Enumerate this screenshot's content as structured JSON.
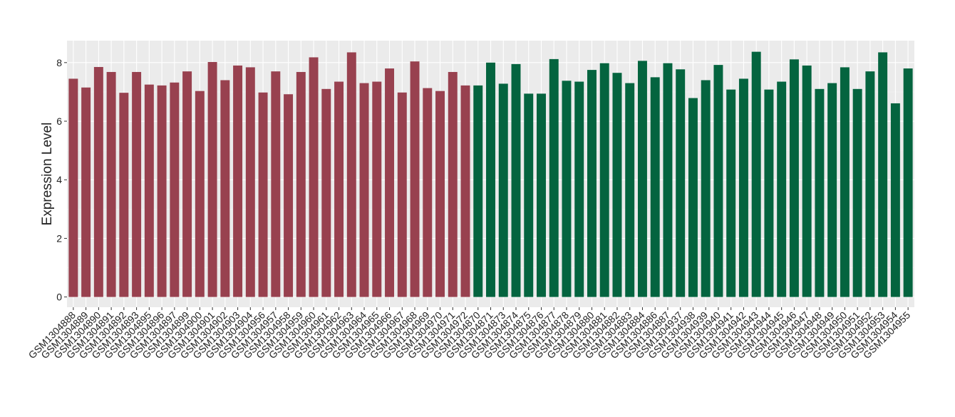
{
  "chart_data": {
    "type": "bar",
    "title": "",
    "xlabel": "",
    "ylabel": "Expression Level",
    "ylim": [
      -0.35,
      8.75
    ],
    "yticks": [
      0,
      2,
      4,
      6,
      8
    ],
    "grid": true,
    "legend": "none",
    "categories": [
      "GSM1304888",
      "GSM1304889",
      "GSM1304890",
      "GSM1304891",
      "GSM1304892",
      "GSM1304893",
      "GSM1304895",
      "GSM1304896",
      "GSM1304897",
      "GSM1304899",
      "GSM1304900",
      "GSM1304901",
      "GSM1304902",
      "GSM1304903",
      "GSM1304904",
      "GSM1304956",
      "GSM1304957",
      "GSM1304958",
      "GSM1304959",
      "GSM1304960",
      "GSM1304961",
      "GSM1304962",
      "GSM1304963",
      "GSM1304964",
      "GSM1304965",
      "GSM1304966",
      "GSM1304967",
      "GSM1304968",
      "GSM1304969",
      "GSM1304970",
      "GSM1304971",
      "GSM1304972",
      "GSM1304870",
      "GSM1304871",
      "GSM1304873",
      "GSM1304874",
      "GSM1304875",
      "GSM1304876",
      "GSM1304877",
      "GSM1304878",
      "GSM1304879",
      "GSM1304880",
      "GSM1304881",
      "GSM1304882",
      "GSM1304883",
      "GSM1304884",
      "GSM1304886",
      "GSM1304887",
      "GSM1304937",
      "GSM1304938",
      "GSM1304939",
      "GSM1304940",
      "GSM1304941",
      "GSM1304942",
      "GSM1304943",
      "GSM1304944",
      "GSM1304945",
      "GSM1304946",
      "GSM1304947",
      "GSM1304948",
      "GSM1304949",
      "GSM1304950",
      "GSM1304951",
      "GSM1304952",
      "GSM1304953",
      "GSM1304954",
      "GSM1304955"
    ],
    "values": [
      7.45,
      7.15,
      7.85,
      7.68,
      6.97,
      7.68,
      7.25,
      7.22,
      7.32,
      7.7,
      7.03,
      8.02,
      7.4,
      7.9,
      7.84,
      6.98,
      7.7,
      6.92,
      7.68,
      8.18,
      7.1,
      7.35,
      8.35,
      7.3,
      7.35,
      7.8,
      6.98,
      8.04,
      7.13,
      7.03,
      7.68,
      7.22,
      7.22,
      8.0,
      7.28,
      7.95,
      6.94,
      6.94,
      8.12,
      7.38,
      7.35,
      7.75,
      7.98,
      7.65,
      7.3,
      8.06,
      7.5,
      7.98,
      7.77,
      6.79,
      7.4,
      7.92,
      7.08,
      7.45,
      8.37,
      7.08,
      7.35,
      8.11,
      7.9,
      7.1,
      7.3,
      7.84,
      7.1,
      7.7,
      8.35,
      6.61,
      7.8
    ],
    "group_sizes": [
      32,
      35
    ],
    "colors": {
      "group_1": "#98414F",
      "group_2": "#04643F",
      "panel_background": "#EBEBEB",
      "grid_major": "#FFFFFF",
      "grid_minor": "#F5F5F5"
    }
  }
}
